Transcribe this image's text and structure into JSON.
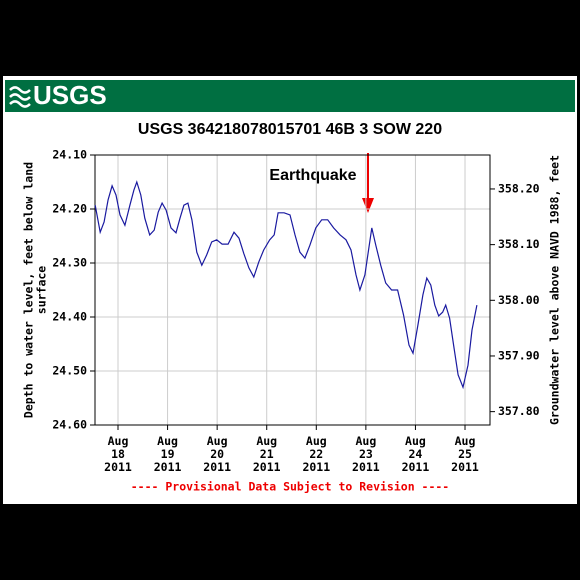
{
  "chart_data": {
    "type": "line",
    "logo_text": "USGS",
    "title": "USGS 364218078015701 46B  3 SOW 220",
    "y_label": [
      "Depth to water level, feet below land",
      "surface"
    ],
    "y2_label": "Groundwater level above NAVD 1988, feet",
    "annotation": "Earthquake",
    "footer": "---- Provisional Data Subject to Revision ----",
    "y_inverted": true,
    "grid": true,
    "xlim": [
      17.536,
      25.504
    ],
    "xticks": [
      {
        "value": 18,
        "label": "Aug 18 2011"
      },
      {
        "value": 19,
        "label": "Aug 19 2011"
      },
      {
        "value": 20,
        "label": "Aug 20 2011"
      },
      {
        "value": 21,
        "label": "Aug 21 2011"
      },
      {
        "value": 22,
        "label": "Aug 22 2011"
      },
      {
        "value": 23,
        "label": "Aug 23 2011"
      },
      {
        "value": 24,
        "label": "Aug 24 2011"
      },
      {
        "value": 25,
        "label": "Aug 25 2011"
      }
    ],
    "ylim": [
      24.1,
      24.6
    ],
    "yticks": [
      {
        "value": 24.1,
        "label": "24.10"
      },
      {
        "value": 24.2,
        "label": "24.20"
      },
      {
        "value": 24.3,
        "label": "24.30"
      },
      {
        "value": 24.4,
        "label": "24.40"
      },
      {
        "value": 24.5,
        "label": "24.50"
      },
      {
        "value": 24.6,
        "label": "24.60"
      }
    ],
    "y2lim": [
      357.776,
      358.261
    ],
    "y2ticks": [
      {
        "value": 358.2,
        "label": "358.20"
      },
      {
        "value": 358.1,
        "label": "358.10"
      },
      {
        "value": 358.0,
        "label": "358.00"
      },
      {
        "value": 357.9,
        "label": "357.90"
      },
      {
        "value": 357.8,
        "label": "357.80"
      }
    ],
    "series": [
      {
        "color": "#1a1aa0",
        "x": [
          17.54,
          17.64,
          17.72,
          17.8,
          17.88,
          17.96,
          18.04,
          18.14,
          18.24,
          18.32,
          18.38,
          18.46,
          18.54,
          18.64,
          18.73,
          18.81,
          18.89,
          18.97,
          19.07,
          19.17,
          19.25,
          19.33,
          19.41,
          19.49,
          19.59,
          19.69,
          19.79,
          19.89,
          19.99,
          20.1,
          20.22,
          20.34,
          20.44,
          20.54,
          20.64,
          20.74,
          20.84,
          20.94,
          21.06,
          21.15,
          21.23,
          21.35,
          21.47,
          21.57,
          21.67,
          21.77,
          21.87,
          21.99,
          22.11,
          22.23,
          22.35,
          22.48,
          22.6,
          22.7,
          22.8,
          22.88,
          22.98,
          23.12,
          23.2,
          23.3,
          23.4,
          23.52,
          23.64,
          23.76,
          23.87,
          23.95,
          24.05,
          24.15,
          24.23,
          24.31,
          24.39,
          24.47,
          24.55,
          24.61,
          24.69,
          24.77,
          24.86,
          24.96,
          25.06,
          25.14,
          25.24
        ],
        "values": [
          24.193,
          24.243,
          24.224,
          24.183,
          24.157,
          24.174,
          24.211,
          24.23,
          24.193,
          24.165,
          24.15,
          24.174,
          24.217,
          24.248,
          24.239,
          24.206,
          24.189,
          24.202,
          24.235,
          24.244,
          24.217,
          24.193,
          24.189,
          24.22,
          24.28,
          24.304,
          24.285,
          24.261,
          24.257,
          24.265,
          24.265,
          24.243,
          24.254,
          24.283,
          24.309,
          24.326,
          24.298,
          24.276,
          24.257,
          24.248,
          24.207,
          24.207,
          24.211,
          24.248,
          24.28,
          24.291,
          24.267,
          24.235,
          24.22,
          24.22,
          24.235,
          24.248,
          24.257,
          24.276,
          24.322,
          24.35,
          24.322,
          24.235,
          24.267,
          24.304,
          24.337,
          24.35,
          24.35,
          24.396,
          24.452,
          24.467,
          24.415,
          24.359,
          24.328,
          24.341,
          24.378,
          24.398,
          24.391,
          24.378,
          24.402,
          24.452,
          24.507,
          24.53,
          24.489,
          24.424,
          24.378
        ]
      }
    ]
  }
}
